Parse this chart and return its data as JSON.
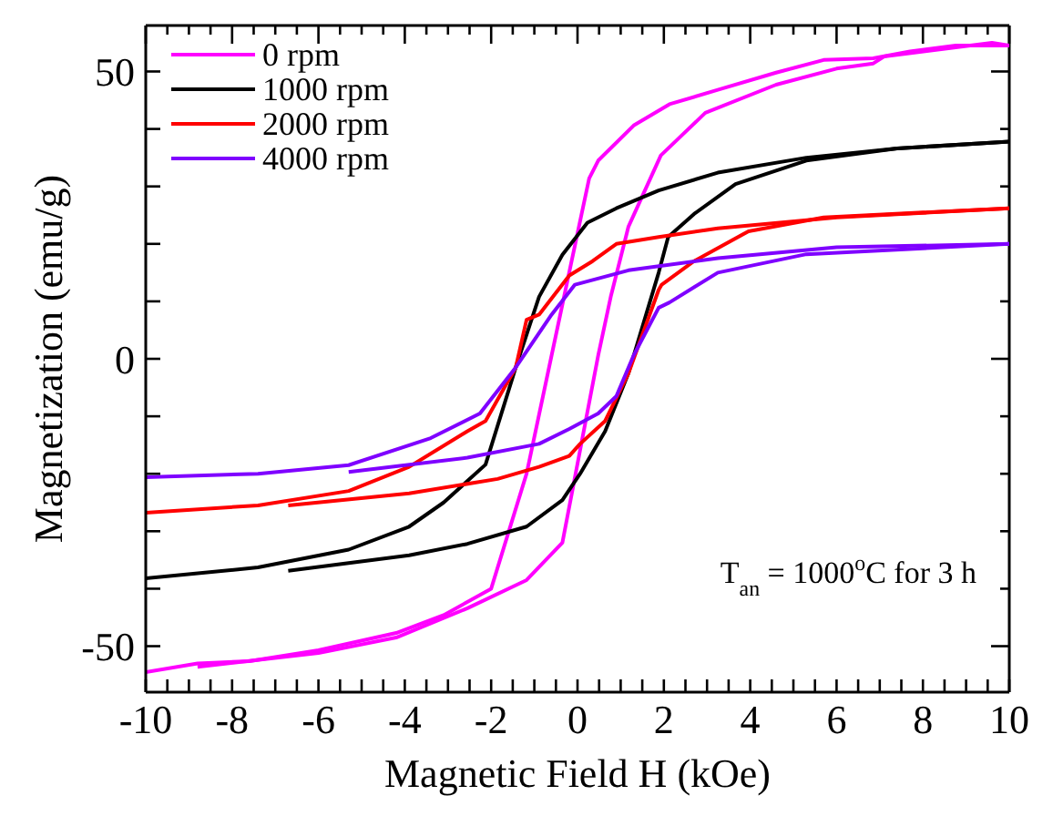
{
  "chart_data": {
    "type": "line",
    "xlabel": "Magnetic Field  H (kOe)",
    "ylabel": "Magnetization (emu/g)",
    "annotations": [
      "T$_{an}$ = 1000$^{o}$C for 3 h"
    ],
    "xlim": [
      -10,
      10
    ],
    "ylim": [
      -58,
      58
    ],
    "xticks": [
      -10,
      {
        "value": -9.5,
        "label": null
      },
      {
        "value": -9,
        "label": null
      },
      {
        "value": -8.5,
        "label": null
      },
      -8,
      {
        "value": -7.5,
        "label": null
      },
      {
        "value": -7,
        "label": null
      },
      {
        "value": -6.5,
        "label": null
      },
      -6,
      {
        "value": -5.5,
        "label": null
      },
      {
        "value": -5,
        "label": null
      },
      {
        "value": -4.5,
        "label": null
      },
      -4,
      {
        "value": -3.5,
        "label": null
      },
      {
        "value": -3,
        "label": null
      },
      {
        "value": -2.5,
        "label": null
      },
      -2,
      {
        "value": -1.5,
        "label": null
      },
      {
        "value": -1,
        "label": null
      },
      {
        "value": -0.5,
        "label": null
      },
      0,
      {
        "value": 0.5,
        "label": null
      },
      {
        "value": 1,
        "label": null
      },
      {
        "value": 1.5,
        "label": null
      },
      2,
      {
        "value": 2.5,
        "label": null
      },
      {
        "value": 3,
        "label": null
      },
      {
        "value": 3.5,
        "label": null
      },
      4,
      {
        "value": 4.5,
        "label": null
      },
      {
        "value": 5,
        "label": null
      },
      {
        "value": 5.5,
        "label": null
      },
      6,
      {
        "value": 6.5,
        "label": null
      },
      {
        "value": 7,
        "label": null
      },
      {
        "value": 7.5,
        "label": null
      },
      8,
      {
        "value": 8.5,
        "label": null
      },
      {
        "value": 9,
        "label": null
      },
      {
        "value": 9.5,
        "label": null
      },
      10
    ],
    "yticks": [
      -50,
      {
        "value": -40,
        "label": null
      },
      {
        "value": -30,
        "label": null
      },
      {
        "value": -20,
        "label": null
      },
      {
        "value": -10,
        "label": null
      },
      0,
      {
        "value": 10,
        "label": null
      },
      {
        "value": 20,
        "label": null
      },
      {
        "value": 30,
        "label": null
      },
      {
        "value": 40,
        "label": null
      },
      50
    ],
    "grid": false,
    "legend": "top left",
    "marker": "none",
    "line_style": "solid",
    "series": [
      {
        "name": "0 rpm",
        "color": "#ff00ff",
        "x": [
          10,
          8.76,
          7.7,
          6.85,
          5.7,
          4.6,
          3.25,
          2.13,
          1.3,
          0.48,
          0.27,
          -0.6,
          -1.18,
          -2.0,
          -3.1,
          -4.2,
          -6.0,
          -7.6,
          -8.8,
          -10
        ],
        "values": [
          54.5,
          54.5,
          53.5,
          52.3,
          52,
          49.8,
          46.8,
          44.3,
          40.6,
          34.5,
          31.4,
          0.6,
          -20,
          -40,
          -44.6,
          -47.7,
          -50.7,
          -52.6,
          -53,
          -54.5
        ]
      },
      {
        "color": "#ff00ff",
        "x": [
          -8.8,
          -6.0,
          -4.2,
          -2.55,
          -1.18,
          -0.35,
          0.48,
          0.77,
          1.18,
          1.93,
          2.96,
          4.6,
          6.0,
          6.85,
          7.1,
          8.76,
          9.6,
          10
        ],
        "values": [
          -53.6,
          -51.2,
          -48.5,
          -43.4,
          -38.5,
          -32,
          0.6,
          10.8,
          23,
          35.4,
          42.8,
          47.7,
          50.5,
          51.4,
          52.6,
          54.2,
          55,
          54.5
        ]
      },
      {
        "name": "1000 rpm",
        "color": "#000000",
        "x": [
          10,
          7.4,
          5.3,
          3.25,
          1.88,
          0.9,
          0.23,
          -0.35,
          -0.89,
          -1.43,
          -2.13,
          -3.1,
          -3.9,
          -5.3,
          -7.4,
          -10
        ],
        "values": [
          37.8,
          36.6,
          35,
          32.4,
          29.3,
          26.2,
          23.7,
          18.1,
          10.8,
          -1.5,
          -18.4,
          -25,
          -29.2,
          -33.2,
          -36.3,
          -38.2
        ]
      },
      {
        "color": "#000000",
        "x": [
          -6.7,
          -3.9,
          -2.55,
          -1.18,
          -0.35,
          0.06,
          0.64,
          1.18,
          1.88,
          2.1,
          2.7,
          3.66,
          5.3,
          7.4,
          10
        ],
        "values": [
          -36.9,
          -34.2,
          -32.2,
          -29.2,
          -24.6,
          -20,
          -12.6,
          -2.5,
          15,
          21.2,
          25.2,
          30.4,
          34.5,
          36.6,
          37.8
        ]
      },
      {
        "name": "2000 rpm",
        "color": "#ff0000",
        "x": [
          10,
          6.0,
          3.25,
          1.88,
          0.9,
          0.35,
          -0.19,
          -0.89,
          -1.18,
          -1.43,
          -2.13,
          -2.55,
          -3.9,
          -5.3,
          -7.4,
          -10
        ],
        "values": [
          26.2,
          24.6,
          22.7,
          21.2,
          20,
          17,
          14.5,
          7.7,
          6.8,
          -1.5,
          -10.8,
          -12.6,
          -18.8,
          -23,
          -25.5,
          -26.8
        ]
      },
      {
        "color": "#ff0000",
        "x": [
          -6.7,
          -3.9,
          -1.85,
          -0.89,
          -0.19,
          0.06,
          0.64,
          1.18,
          1.88,
          1.95,
          2.7,
          3.96,
          5.7,
          10
        ],
        "values": [
          -25.5,
          -23.4,
          -20.9,
          -18.8,
          -16.9,
          -14.8,
          -10.8,
          -2.5,
          12,
          12.9,
          17,
          22.2,
          24.6,
          26.2
        ]
      },
      {
        "name": "4000 rpm",
        "color": "#7f00ff",
        "x": [
          10,
          6.0,
          3.25,
          1.18,
          -0.06,
          -0.6,
          -1.43,
          -2.26,
          -3.4,
          -5.3,
          -7.4,
          -10
        ],
        "values": [
          20,
          19.4,
          17.5,
          15.4,
          12.9,
          7.7,
          -1.5,
          -9.5,
          -13.8,
          -18.5,
          -20,
          -20.6
        ]
      },
      {
        "color": "#7f00ff",
        "x": [
          -5.3,
          -2.55,
          -0.89,
          -0.19,
          0.48,
          0.9,
          1.3,
          1.88,
          2.13,
          3.25,
          5.3,
          10
        ],
        "values": [
          -19.7,
          -17.2,
          -14.8,
          -12.2,
          -9.5,
          -6.5,
          0.6,
          8.9,
          9.8,
          15,
          18.2,
          20
        ]
      }
    ]
  }
}
